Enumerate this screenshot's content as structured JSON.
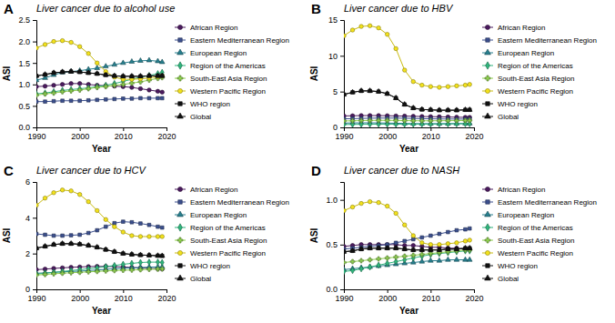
{
  "chart_data": [
    {
      "type": "line",
      "panel_label": "A",
      "title": "Liver cancer due to alcohol use",
      "x_label": "Year",
      "y_label": "ASI",
      "legend": "right",
      "grid": false,
      "x": [
        1990,
        1992,
        1994,
        1996,
        1998,
        2000,
        2002,
        2004,
        2006,
        2008,
        2010,
        2012,
        2014,
        2016,
        2018,
        2019
      ],
      "xlim": [
        1990,
        2020
      ],
      "xticks": [
        1990,
        2000,
        2010,
        2020
      ],
      "ylim": [
        0,
        2.5
      ],
      "yticks": [
        {
          "value": 0,
          "label": "0.0"
        },
        0.5,
        {
          "value": 1,
          "label": "1.0"
        },
        1.5,
        {
          "value": 2,
          "label": "2.0"
        },
        2.5
      ],
      "series": [
        {
          "name": "African Region",
          "color": "#4b1a5e",
          "marker": "circle",
          "values": [
            0.95,
            0.96,
            0.98,
            1.0,
            1.02,
            1.02,
            1.0,
            0.98,
            0.97,
            0.96,
            0.95,
            0.93,
            0.9,
            0.87,
            0.84,
            0.82
          ]
        },
        {
          "name": "Eastern Mediterranean Region",
          "color": "#3b4f8e",
          "marker": "square",
          "values": [
            0.6,
            0.6,
            0.61,
            0.62,
            0.62,
            0.62,
            0.63,
            0.64,
            0.65,
            0.66,
            0.67,
            0.67,
            0.68,
            0.68,
            0.68,
            0.68
          ]
        },
        {
          "name": "European Region",
          "color": "#277f8e",
          "marker": "triangle",
          "values": [
            1.1,
            1.15,
            1.22,
            1.28,
            1.3,
            1.32,
            1.35,
            1.38,
            1.42,
            1.46,
            1.5,
            1.53,
            1.55,
            1.56,
            1.54,
            1.52
          ]
        },
        {
          "name": "Region of the Americas",
          "color": "#2fb47c",
          "marker": "diamond",
          "values": [
            0.78,
            0.8,
            0.83,
            0.86,
            0.88,
            0.9,
            0.92,
            0.95,
            0.98,
            1.02,
            1.07,
            1.12,
            1.17,
            1.21,
            1.25,
            1.28
          ]
        },
        {
          "name": "South-East Asia Region",
          "color": "#8fd14f",
          "marker": "cross",
          "values": [
            0.75,
            0.78,
            0.8,
            0.83,
            0.85,
            0.87,
            0.9,
            0.93,
            0.95,
            0.98,
            1.0,
            1.03,
            1.06,
            1.1,
            1.14,
            1.16
          ]
        },
        {
          "name": "Western Pacific Region",
          "color": "#f3e21b",
          "marker": "circle",
          "values": [
            1.85,
            1.93,
            2.0,
            2.02,
            1.98,
            1.88,
            1.72,
            1.5,
            1.3,
            1.17,
            1.12,
            1.12,
            1.13,
            1.15,
            1.18,
            1.2
          ]
        },
        {
          "name": "WHO region",
          "color": "#111111",
          "marker": "square",
          "values": [
            1.2,
            1.23,
            1.27,
            1.29,
            1.3,
            1.29,
            1.27,
            1.25,
            1.22,
            1.2,
            1.19,
            1.19,
            1.19,
            1.2,
            1.2,
            1.2
          ]
        },
        {
          "name": "Global",
          "color": "#111111",
          "marker": "triangle",
          "values": [
            1.2,
            1.23,
            1.27,
            1.29,
            1.3,
            1.29,
            1.27,
            1.25,
            1.22,
            1.2,
            1.19,
            1.19,
            1.19,
            1.2,
            1.2,
            1.2
          ]
        }
      ]
    },
    {
      "type": "line",
      "panel_label": "B",
      "title": "Liver cancer due to HBV",
      "x_label": "Year",
      "y_label": "ASI",
      "legend": "right",
      "grid": false,
      "x": [
        1990,
        1992,
        1994,
        1996,
        1998,
        2000,
        2002,
        2004,
        2006,
        2008,
        2010,
        2012,
        2014,
        2016,
        2018,
        2019
      ],
      "xlim": [
        1990,
        2020
      ],
      "xticks": [
        1990,
        2000,
        2010,
        2020
      ],
      "ylim": [
        0,
        15
      ],
      "yticks": [
        0,
        5,
        10,
        15
      ],
      "series": [
        {
          "name": "African Region",
          "color": "#4b1a5e",
          "marker": "circle",
          "values": [
            1.6,
            1.62,
            1.65,
            1.65,
            1.65,
            1.63,
            1.6,
            1.58,
            1.55,
            1.52,
            1.5,
            1.48,
            1.45,
            1.42,
            1.4,
            1.4
          ]
        },
        {
          "name": "Eastern Mediterranean Region",
          "color": "#3b4f8e",
          "marker": "square",
          "values": [
            1.2,
            1.22,
            1.25,
            1.28,
            1.3,
            1.3,
            1.3,
            1.28,
            1.25,
            1.22,
            1.2,
            1.18,
            1.17,
            1.16,
            1.15,
            1.15
          ]
        },
        {
          "name": "European Region",
          "color": "#277f8e",
          "marker": "triangle",
          "values": [
            0.6,
            0.62,
            0.63,
            0.63,
            0.62,
            0.6,
            0.58,
            0.55,
            0.53,
            0.52,
            0.52,
            0.52,
            0.53,
            0.54,
            0.55,
            0.55
          ]
        },
        {
          "name": "Region of the Americas",
          "color": "#2fb47c",
          "marker": "diamond",
          "values": [
            0.4,
            0.42,
            0.43,
            0.44,
            0.45,
            0.45,
            0.45,
            0.45,
            0.45,
            0.46,
            0.46,
            0.47,
            0.48,
            0.49,
            0.5,
            0.5
          ]
        },
        {
          "name": "South-East Asia Region",
          "color": "#8fd14f",
          "marker": "cross",
          "values": [
            0.9,
            0.92,
            0.95,
            0.97,
            0.98,
            0.98,
            0.97,
            0.95,
            0.93,
            0.92,
            0.92,
            0.93,
            0.94,
            0.95,
            0.96,
            0.97
          ]
        },
        {
          "name": "Western Pacific Region",
          "color": "#f3e21b",
          "marker": "circle",
          "values": [
            12.8,
            13.6,
            14.1,
            14.2,
            13.9,
            13.0,
            11.0,
            8.0,
            6.4,
            5.9,
            5.7,
            5.6,
            5.7,
            5.8,
            5.9,
            6.0
          ]
        },
        {
          "name": "WHO region",
          "color": "#111111",
          "marker": "square",
          "values": [
            4.6,
            4.9,
            5.1,
            5.1,
            5.0,
            4.7,
            4.1,
            3.2,
            2.7,
            2.5,
            2.45,
            2.4,
            2.4,
            2.4,
            2.45,
            2.45
          ]
        },
        {
          "name": "Global",
          "color": "#111111",
          "marker": "triangle",
          "values": [
            4.6,
            4.9,
            5.1,
            5.1,
            5.0,
            4.7,
            4.1,
            3.2,
            2.7,
            2.5,
            2.45,
            2.4,
            2.4,
            2.4,
            2.45,
            2.45
          ]
        }
      ]
    },
    {
      "type": "line",
      "panel_label": "C",
      "title": "Liver cancer due to HCV",
      "x_label": "Year",
      "y_label": "ASI",
      "legend": "right",
      "grid": false,
      "x": [
        1990,
        1992,
        1994,
        1996,
        1998,
        2000,
        2002,
        2004,
        2006,
        2008,
        2010,
        2012,
        2014,
        2016,
        2018,
        2019
      ],
      "xlim": [
        1990,
        2020
      ],
      "xticks": [
        1990,
        2000,
        2010,
        2020
      ],
      "ylim": [
        0,
        6
      ],
      "yticks": [
        0,
        2,
        4,
        6
      ],
      "series": [
        {
          "name": "African Region",
          "color": "#4b1a5e",
          "marker": "circle",
          "values": [
            1.1,
            1.13,
            1.17,
            1.2,
            1.23,
            1.25,
            1.27,
            1.28,
            1.28,
            1.27,
            1.25,
            1.22,
            1.2,
            1.17,
            1.15,
            1.14
          ]
        },
        {
          "name": "Eastern Mediterranean Region",
          "color": "#3b4f8e",
          "marker": "square",
          "values": [
            3.1,
            3.05,
            3.0,
            3.0,
            3.02,
            3.05,
            3.15,
            3.3,
            3.5,
            3.7,
            3.78,
            3.75,
            3.68,
            3.6,
            3.5,
            3.45
          ]
        },
        {
          "name": "European Region",
          "color": "#277f8e",
          "marker": "triangle",
          "values": [
            0.9,
            0.92,
            0.95,
            0.98,
            1.0,
            1.02,
            1.05,
            1.08,
            1.12,
            1.15,
            1.18,
            1.2,
            1.22,
            1.24,
            1.25,
            1.25
          ]
        },
        {
          "name": "Region of the Americas",
          "color": "#2fb47c",
          "marker": "diamond",
          "values": [
            0.85,
            0.9,
            0.95,
            1.0,
            1.05,
            1.1,
            1.15,
            1.2,
            1.27,
            1.33,
            1.4,
            1.45,
            1.5,
            1.52,
            1.52,
            1.5
          ]
        },
        {
          "name": "South-East Asia Region",
          "color": "#8fd14f",
          "marker": "cross",
          "values": [
            0.8,
            0.83,
            0.87,
            0.9,
            0.93,
            0.95,
            0.98,
            1.0,
            1.03,
            1.05,
            1.07,
            1.08,
            1.1,
            1.12,
            1.13,
            1.14
          ]
        },
        {
          "name": "Western Pacific Region",
          "color": "#f3e21b",
          "marker": "circle",
          "values": [
            4.7,
            5.1,
            5.4,
            5.55,
            5.5,
            5.3,
            4.9,
            4.4,
            3.9,
            3.5,
            3.2,
            3.0,
            2.95,
            2.95,
            2.95,
            2.95
          ]
        },
        {
          "name": "WHO region",
          "color": "#111111",
          "marker": "square",
          "values": [
            2.3,
            2.4,
            2.5,
            2.55,
            2.55,
            2.52,
            2.45,
            2.35,
            2.22,
            2.1,
            2.0,
            1.95,
            1.92,
            1.9,
            1.88,
            1.87
          ]
        },
        {
          "name": "Global",
          "color": "#111111",
          "marker": "triangle",
          "values": [
            2.3,
            2.4,
            2.5,
            2.55,
            2.55,
            2.52,
            2.45,
            2.35,
            2.22,
            2.1,
            2.0,
            1.95,
            1.92,
            1.9,
            1.88,
            1.87
          ]
        }
      ]
    },
    {
      "type": "line",
      "panel_label": "D",
      "title": "Liver cancer due to NASH",
      "x_label": "Year",
      "y_label": "ASI",
      "legend": "right",
      "grid": false,
      "x": [
        1990,
        1992,
        1994,
        1996,
        1998,
        2000,
        2002,
        2004,
        2006,
        2008,
        2010,
        2012,
        2014,
        2016,
        2018,
        2019
      ],
      "xlim": [
        1990,
        2020
      ],
      "xticks": [
        1990,
        2000,
        2010,
        2020
      ],
      "ylim": [
        0,
        1.2
      ],
      "yticks": [
        {
          "value": 0,
          "label": "0.0"
        },
        0.5,
        {
          "value": 1,
          "label": "1.0"
        }
      ],
      "series": [
        {
          "name": "African Region",
          "color": "#4b1a5e",
          "marker": "circle",
          "values": [
            0.48,
            0.49,
            0.5,
            0.5,
            0.5,
            0.5,
            0.5,
            0.49,
            0.49,
            0.48,
            0.47,
            0.47,
            0.46,
            0.46,
            0.45,
            0.45
          ]
        },
        {
          "name": "Eastern Mediterranean Region",
          "color": "#3b4f8e",
          "marker": "square",
          "values": [
            0.45,
            0.46,
            0.47,
            0.48,
            0.49,
            0.5,
            0.52,
            0.54,
            0.56,
            0.58,
            0.6,
            0.62,
            0.64,
            0.66,
            0.67,
            0.68
          ]
        },
        {
          "name": "European Region",
          "color": "#277f8e",
          "marker": "triangle",
          "values": [
            0.22,
            0.23,
            0.24,
            0.25,
            0.26,
            0.27,
            0.28,
            0.29,
            0.3,
            0.31,
            0.32,
            0.32,
            0.33,
            0.33,
            0.33,
            0.33
          ]
        },
        {
          "name": "Region of the Americas",
          "color": "#2fb47c",
          "marker": "diamond",
          "values": [
            0.2,
            0.21,
            0.23,
            0.25,
            0.27,
            0.29,
            0.31,
            0.33,
            0.35,
            0.37,
            0.39,
            0.4,
            0.41,
            0.42,
            0.43,
            0.43
          ]
        },
        {
          "name": "South-East Asia Region",
          "color": "#8fd14f",
          "marker": "cross",
          "values": [
            0.3,
            0.31,
            0.32,
            0.33,
            0.34,
            0.35,
            0.36,
            0.37,
            0.38,
            0.39,
            0.4,
            0.41,
            0.42,
            0.43,
            0.44,
            0.44
          ]
        },
        {
          "name": "Western Pacific Region",
          "color": "#f3e21b",
          "marker": "circle",
          "values": [
            0.88,
            0.92,
            0.96,
            0.98,
            0.97,
            0.93,
            0.85,
            0.72,
            0.6,
            0.52,
            0.5,
            0.5,
            0.51,
            0.52,
            0.54,
            0.55
          ]
        },
        {
          "name": "WHO region",
          "color": "#111111",
          "marker": "square",
          "values": [
            0.42,
            0.43,
            0.45,
            0.46,
            0.46,
            0.46,
            0.46,
            0.45,
            0.44,
            0.44,
            0.44,
            0.44,
            0.45,
            0.45,
            0.46,
            0.46
          ]
        },
        {
          "name": "Global",
          "color": "#111111",
          "marker": "triangle",
          "values": [
            0.42,
            0.43,
            0.45,
            0.46,
            0.46,
            0.46,
            0.46,
            0.45,
            0.44,
            0.44,
            0.44,
            0.44,
            0.45,
            0.45,
            0.46,
            0.46
          ]
        }
      ]
    }
  ]
}
